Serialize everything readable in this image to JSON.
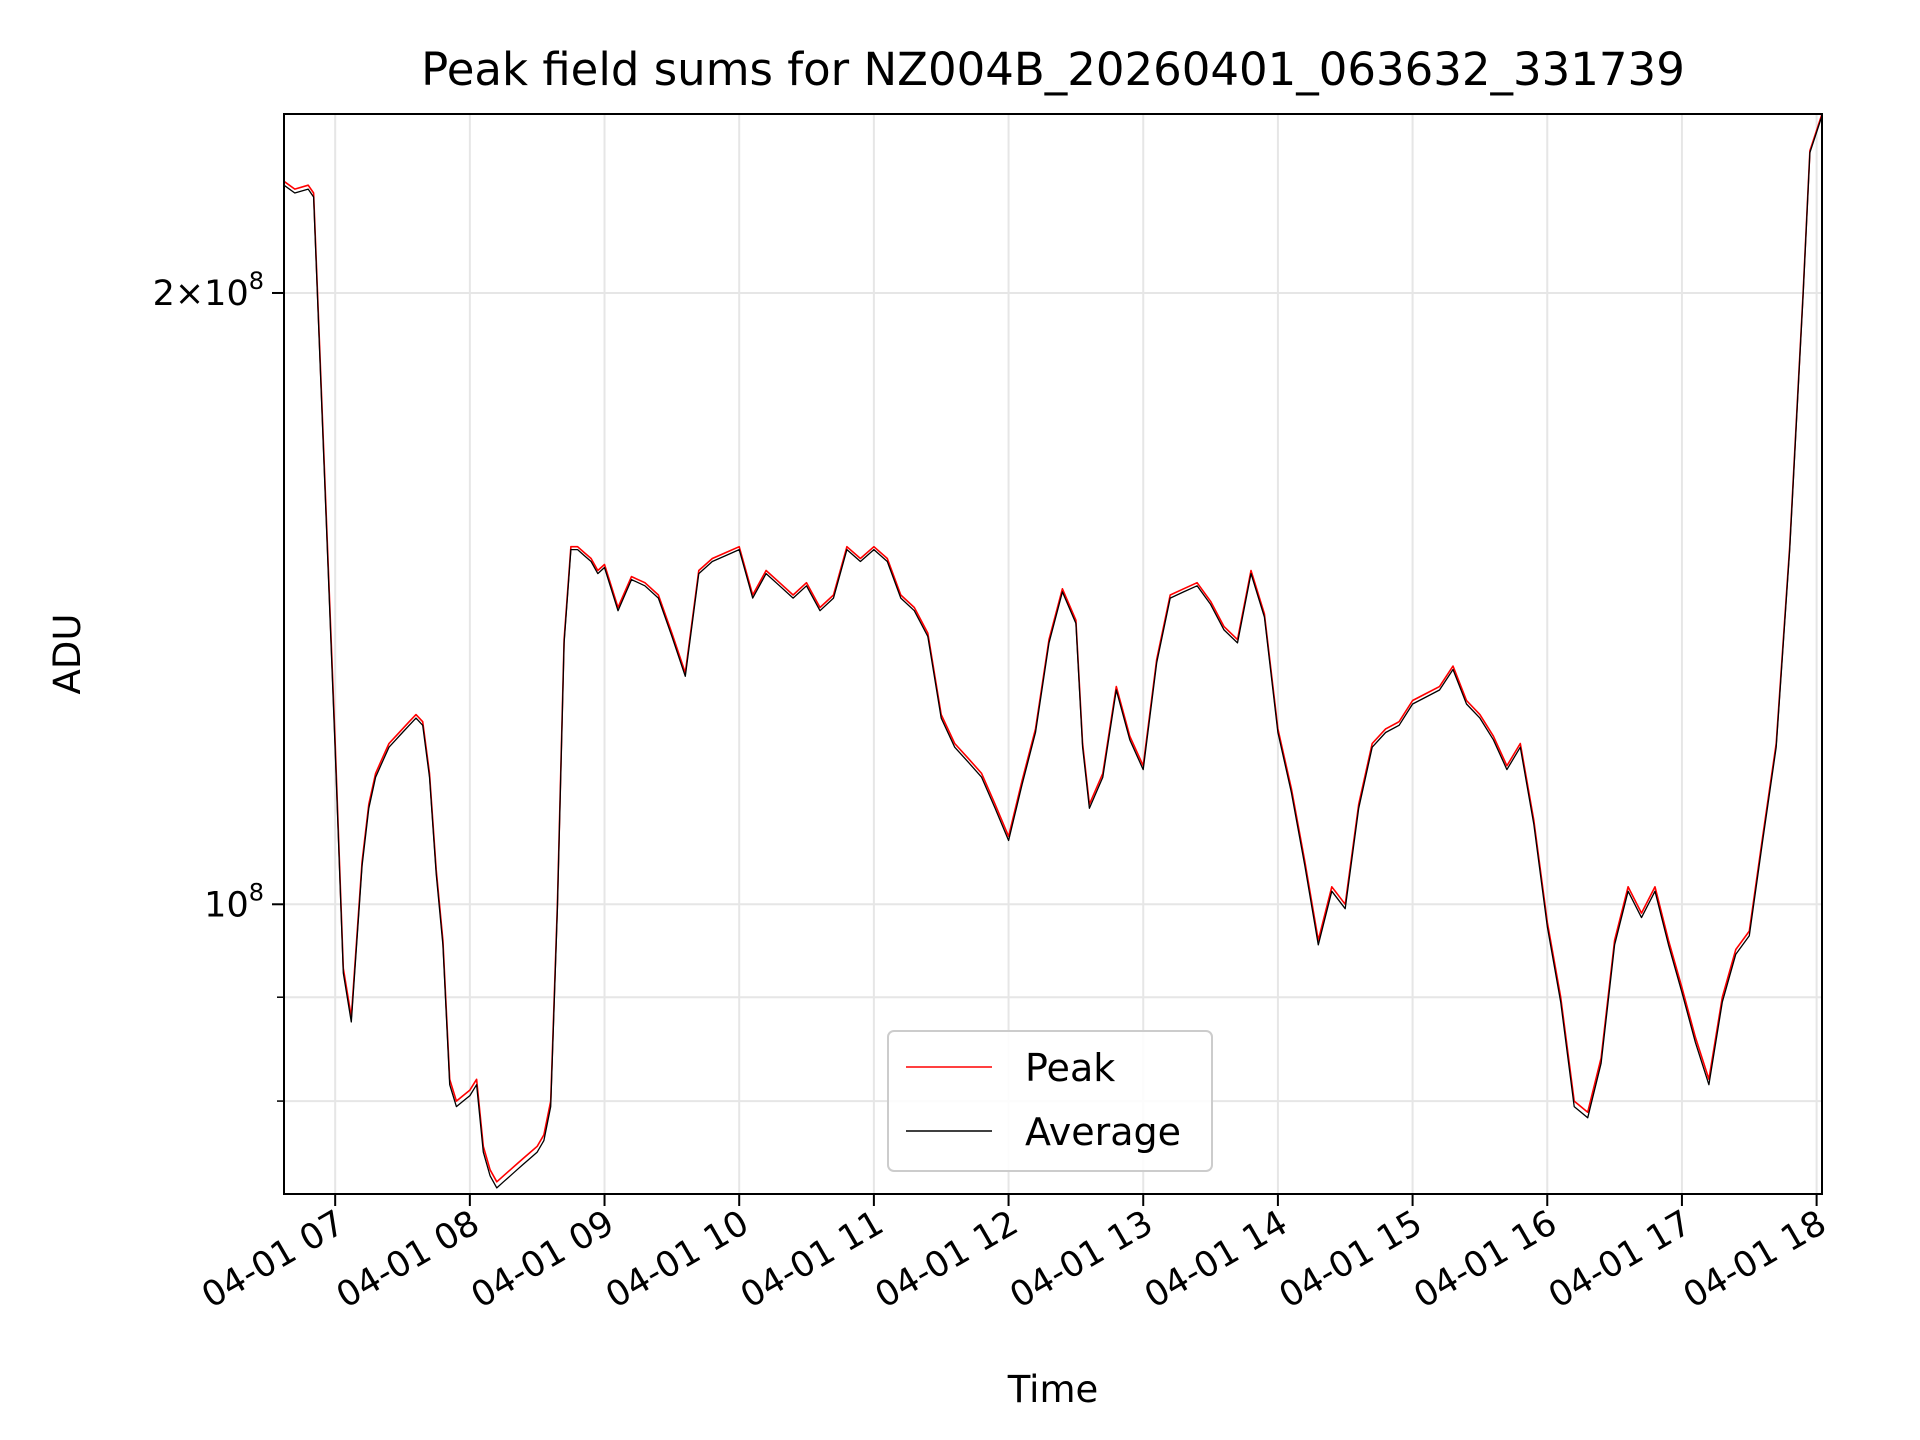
{
  "chart_data": {
    "type": "line",
    "title": "Peak field sums for NZ004B_20260401_063632_331739",
    "xlabel": "Time",
    "ylabel": "ADU",
    "x_unit": "hour on 2026-04-01",
    "xlim": [
      6.62,
      18.04
    ],
    "ylim": [
      72000000,
      245000000
    ],
    "yscale": "log",
    "grid": true,
    "legend_position": "lower-center",
    "x_ticks": [
      {
        "value": 7,
        "label": "04-01 07"
      },
      {
        "value": 8,
        "label": "04-01 08"
      },
      {
        "value": 9,
        "label": "04-01 09"
      },
      {
        "value": 10,
        "label": "04-01 10"
      },
      {
        "value": 11,
        "label": "04-01 11"
      },
      {
        "value": 12,
        "label": "04-01 12"
      },
      {
        "value": 13,
        "label": "04-01 13"
      },
      {
        "value": 14,
        "label": "04-01 14"
      },
      {
        "value": 15,
        "label": "04-01 15"
      },
      {
        "value": 16,
        "label": "04-01 16"
      },
      {
        "value": 17,
        "label": "04-01 17"
      },
      {
        "value": 18,
        "label": "04-01 18"
      }
    ],
    "y_ticks_major": [
      {
        "value": 100000000,
        "base": "10",
        "exp": "8",
        "label": "10^8"
      },
      {
        "value": 200000000,
        "mantissa": "2",
        "base": "10",
        "exp": "8",
        "label": "2×10^8"
      }
    ],
    "y_ticks_minor": [
      70000000,
      80000000,
      90000000
    ],
    "series": [
      {
        "name": "Peak",
        "color": "#ff0000",
        "x": [
          6.62,
          6.7,
          6.8,
          6.84,
          7.0,
          7.06,
          7.12,
          7.2,
          7.25,
          7.3,
          7.35,
          7.4,
          7.45,
          7.5,
          7.55,
          7.6,
          7.65,
          7.7,
          7.75,
          7.8,
          7.85,
          7.9,
          7.95,
          8.0,
          8.05,
          8.1,
          8.15,
          8.2,
          8.25,
          8.3,
          8.35,
          8.4,
          8.45,
          8.5,
          8.55,
          8.6,
          8.65,
          8.7,
          8.75,
          8.8,
          8.85,
          8.9,
          8.95,
          9.0,
          9.1,
          9.2,
          9.3,
          9.4,
          9.5,
          9.6,
          9.7,
          9.8,
          9.9,
          10.0,
          10.1,
          10.2,
          10.3,
          10.4,
          10.5,
          10.6,
          10.7,
          10.8,
          10.9,
          11.0,
          11.1,
          11.2,
          11.3,
          11.4,
          11.5,
          11.6,
          11.7,
          11.8,
          11.9,
          12.0,
          12.1,
          12.2,
          12.3,
          12.4,
          12.5,
          12.55,
          12.6,
          12.7,
          12.8,
          12.9,
          13.0,
          13.1,
          13.2,
          13.3,
          13.4,
          13.5,
          13.6,
          13.7,
          13.8,
          13.9,
          14.0,
          14.1,
          14.2,
          14.3,
          14.4,
          14.5,
          14.6,
          14.7,
          14.8,
          14.9,
          15.0,
          15.1,
          15.2,
          15.3,
          15.4,
          15.5,
          15.6,
          15.7,
          15.8,
          15.9,
          16.0,
          16.1,
          16.2,
          16.3,
          16.4,
          16.5,
          16.6,
          16.7,
          16.8,
          16.9,
          17.0,
          17.1,
          17.2,
          17.3,
          17.4,
          17.5,
          17.6,
          17.7,
          17.8,
          17.9,
          17.95,
          18.04
        ],
        "values": [
          227000000,
          225000000,
          226000000,
          224000000,
          120000000,
          93000000,
          88000000,
          105000000,
          112000000,
          116000000,
          118000000,
          120000000,
          121000000,
          122000000,
          123000000,
          124000000,
          123000000,
          116000000,
          104000000,
          96000000,
          82000000,
          80000000,
          80500000,
          81000000,
          82000000,
          76000000,
          74000000,
          73000000,
          73500000,
          74000000,
          74500000,
          75000000,
          75500000,
          76000000,
          77000000,
          80000000,
          100000000,
          135000000,
          150000000,
          150000000,
          149000000,
          148000000,
          146000000,
          147000000,
          140000000,
          145000000,
          144000000,
          142000000,
          136000000,
          130000000,
          146000000,
          148000000,
          149000000,
          150000000,
          142000000,
          146000000,
          144000000,
          142000000,
          144000000,
          140000000,
          142000000,
          150000000,
          148000000,
          150000000,
          148000000,
          142000000,
          140000000,
          136000000,
          124000000,
          120000000,
          118000000,
          116000000,
          112000000,
          108000000,
          115000000,
          122000000,
          135000000,
          143000000,
          138000000,
          120000000,
          112000000,
          116000000,
          128000000,
          121000000,
          117000000,
          132000000,
          142000000,
          143000000,
          144000000,
          141000000,
          137000000,
          135000000,
          146000000,
          139000000,
          122000000,
          114000000,
          105000000,
          96000000,
          102000000,
          100000000,
          112000000,
          120000000,
          122000000,
          123000000,
          126000000,
          127000000,
          128000000,
          131000000,
          126000000,
          124000000,
          121000000,
          117000000,
          120000000,
          110000000,
          98000000,
          90000000,
          80000000,
          79000000,
          84000000,
          96000000,
          102000000,
          99000000,
          102000000,
          96000000,
          91000000,
          86000000,
          82000000,
          90000000,
          95000000,
          97000000,
          108000000,
          120000000,
          150000000,
          200000000,
          235000000,
          245000000
        ]
      },
      {
        "name": "Average",
        "color": "#000000",
        "x": [
          6.62,
          6.7,
          6.8,
          6.84,
          7.0,
          7.06,
          7.12,
          7.2,
          7.25,
          7.3,
          7.35,
          7.4,
          7.45,
          7.5,
          7.55,
          7.6,
          7.65,
          7.7,
          7.75,
          7.8,
          7.85,
          7.9,
          7.95,
          8.0,
          8.05,
          8.1,
          8.15,
          8.2,
          8.25,
          8.3,
          8.35,
          8.4,
          8.45,
          8.5,
          8.55,
          8.6,
          8.65,
          8.7,
          8.75,
          8.8,
          8.85,
          8.9,
          8.95,
          9.0,
          9.1,
          9.2,
          9.3,
          9.4,
          9.5,
          9.6,
          9.7,
          9.8,
          9.9,
          10.0,
          10.1,
          10.2,
          10.3,
          10.4,
          10.5,
          10.6,
          10.7,
          10.8,
          10.9,
          11.0,
          11.1,
          11.2,
          11.3,
          11.4,
          11.5,
          11.6,
          11.7,
          11.8,
          11.9,
          12.0,
          12.1,
          12.2,
          12.3,
          12.4,
          12.5,
          12.55,
          12.6,
          12.7,
          12.8,
          12.9,
          13.0,
          13.1,
          13.2,
          13.3,
          13.4,
          13.5,
          13.6,
          13.7,
          13.8,
          13.9,
          14.0,
          14.1,
          14.2,
          14.3,
          14.4,
          14.5,
          14.6,
          14.7,
          14.8,
          14.9,
          15.0,
          15.1,
          15.2,
          15.3,
          15.4,
          15.5,
          15.6,
          15.7,
          15.8,
          15.9,
          16.0,
          16.1,
          16.2,
          16.3,
          16.4,
          16.5,
          16.6,
          16.7,
          16.8,
          16.9,
          17.0,
          17.1,
          17.2,
          17.3,
          17.4,
          17.5,
          17.6,
          17.7,
          17.8,
          17.9,
          17.95,
          18.04
        ],
        "values": [
          226000000,
          224000000,
          225000000,
          223000000,
          119000000,
          92500000,
          87500000,
          104500000,
          111500000,
          115500000,
          117500000,
          119500000,
          120500000,
          121500000,
          122500000,
          123500000,
          122500000,
          115500000,
          103500000,
          95500000,
          81500000,
          79500000,
          80000000,
          80500000,
          81500000,
          75500000,
          73500000,
          72500000,
          73000000,
          73500000,
          74000000,
          74500000,
          75000000,
          75500000,
          76500000,
          79500000,
          99500000,
          134500000,
          149500000,
          149500000,
          148500000,
          147500000,
          145500000,
          146500000,
          139500000,
          144500000,
          143500000,
          141500000,
          135500000,
          129500000,
          145500000,
          147500000,
          148500000,
          149500000,
          141500000,
          145500000,
          143500000,
          141500000,
          143500000,
          139500000,
          141500000,
          149500000,
          147500000,
          149500000,
          147500000,
          141500000,
          139500000,
          135500000,
          123500000,
          119500000,
          117500000,
          115500000,
          111500000,
          107500000,
          114500000,
          121500000,
          134500000,
          142500000,
          137500000,
          119500000,
          111500000,
          115500000,
          127500000,
          120500000,
          116500000,
          131500000,
          141500000,
          142500000,
          143500000,
          140500000,
          136500000,
          134500000,
          145500000,
          138500000,
          121500000,
          113500000,
          104500000,
          95500000,
          101500000,
          99500000,
          111500000,
          119500000,
          121500000,
          122500000,
          125500000,
          126500000,
          127500000,
          130500000,
          125500000,
          123500000,
          120500000,
          116500000,
          119500000,
          109500000,
          97500000,
          89500000,
          79500000,
          78500000,
          83500000,
          95500000,
          101500000,
          98500000,
          101500000,
          95500000,
          90500000,
          85500000,
          81500000,
          89500000,
          94500000,
          96500000,
          107500000,
          119500000,
          149500000,
          199500000,
          234500000,
          244500000
        ]
      }
    ]
  }
}
